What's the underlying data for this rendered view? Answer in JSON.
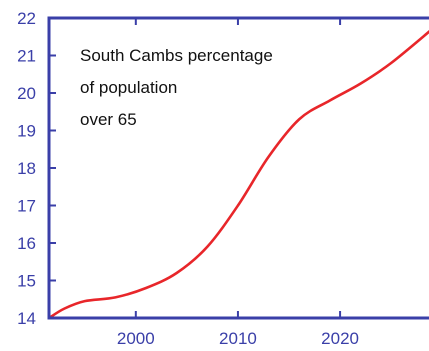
{
  "chart_data": {
    "type": "line",
    "title": "",
    "xlabel": "",
    "ylabel": "",
    "annotation_lines": [
      "South Cambs percentage",
      "of population",
      "over 65"
    ],
    "xlim": [
      1991.5,
      2029
    ],
    "ylim": [
      14,
      22
    ],
    "x_ticks": [
      2000,
      2010,
      2020
    ],
    "x_tick_labels": [
      "2000",
      "2010",
      "2020"
    ],
    "y_ticks": [
      14,
      15,
      16,
      17,
      18,
      19,
      20,
      21,
      22
    ],
    "y_tick_labels": [
      "14",
      "15",
      "16",
      "17",
      "18",
      "19",
      "20",
      "21",
      "22"
    ],
    "grid": false,
    "legend": "none",
    "series": [
      {
        "color": "#e8262a",
        "x": [
          1991.5,
          1993,
          1995,
          1998,
          2001,
          2004,
          2007,
          2010,
          2013,
          2016,
          2019,
          2022,
          2025,
          2029
        ],
        "y": [
          14.0,
          14.25,
          14.45,
          14.55,
          14.8,
          15.2,
          15.9,
          17.0,
          18.3,
          19.3,
          19.8,
          20.25,
          20.8,
          21.7
        ]
      }
    ],
    "axis_color": "#3a3fa8"
  }
}
